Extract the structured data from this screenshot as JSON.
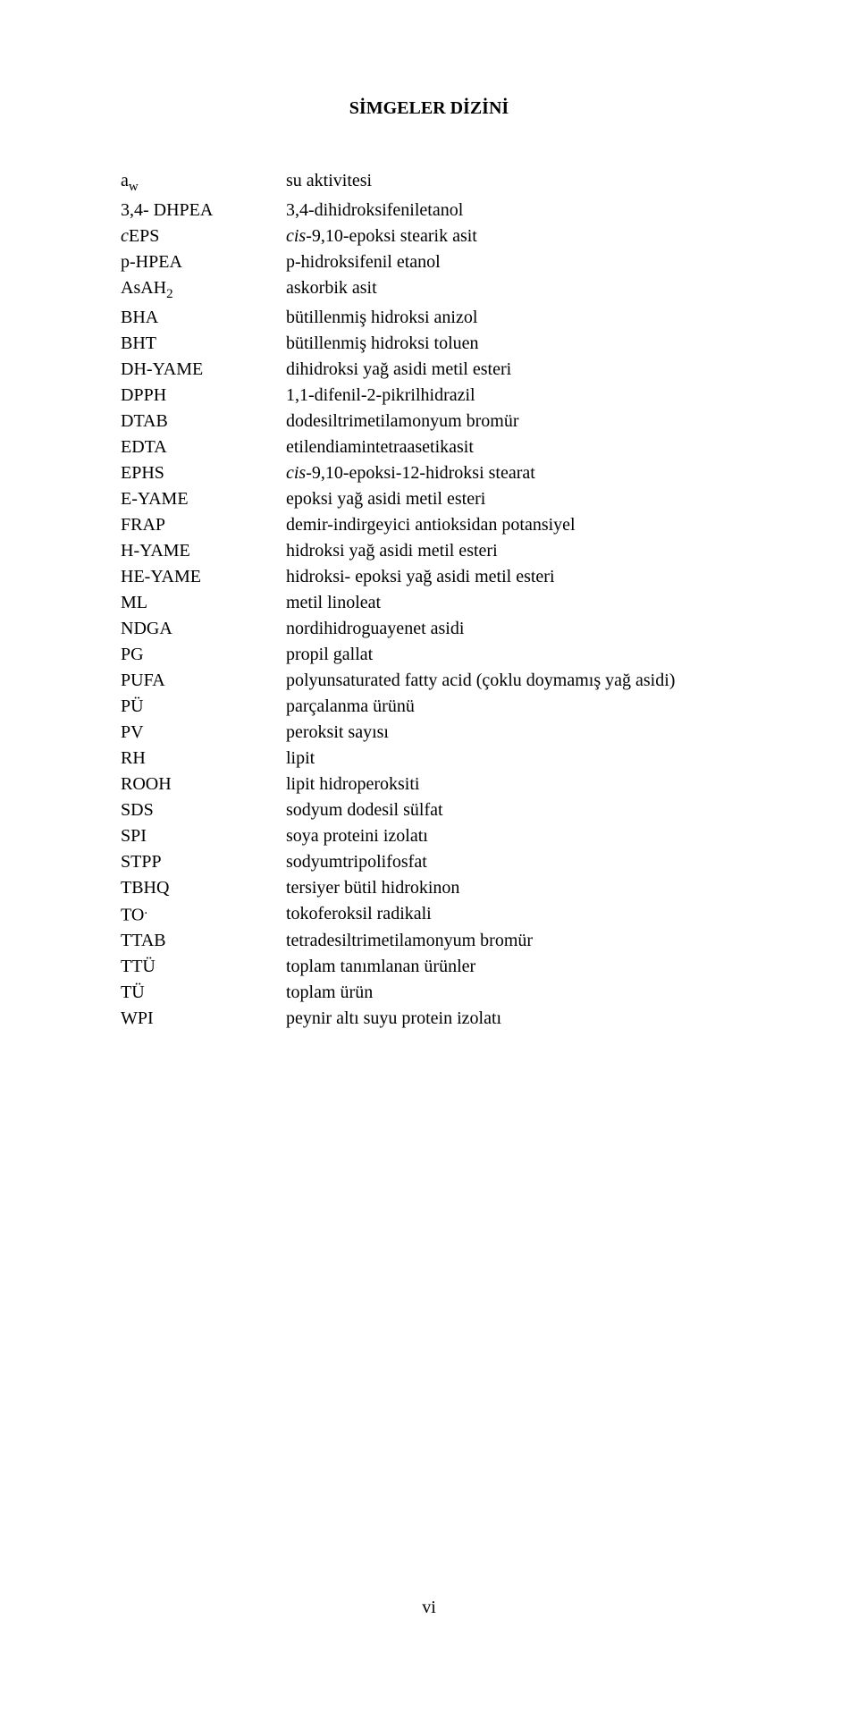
{
  "title": "SİMGELER DİZİNİ",
  "page_number": "vi",
  "colors": {
    "text": "#000000",
    "background": "#ffffff"
  },
  "typography": {
    "family": "Times New Roman",
    "body_fontsize_pt": 15,
    "title_fontsize_pt": 15
  },
  "entries": [
    {
      "abbr_pre": "a",
      "abbr_sub": "w",
      "desc": "su aktivitesi"
    },
    {
      "abbr": "3,4- DHPEA",
      "desc": "3,4-dihidroksifeniletanol"
    },
    {
      "abbr_italic_pre": "c",
      "abbr_post": "EPS",
      "desc_italic_pre": "cis",
      "desc_post": "-9,10-epoksi stearik asit"
    },
    {
      "abbr": "p-HPEA",
      "desc": "p-hidroksifenil etanol"
    },
    {
      "abbr_pre": "AsAH",
      "abbr_sub": "2",
      "desc": "askorbik asit"
    },
    {
      "abbr": "BHA",
      "desc": "bütillenmiş hidroksi anizol"
    },
    {
      "abbr": "BHT",
      "desc": "bütillenmiş hidroksi toluen"
    },
    {
      "abbr": "DH-YAME",
      "desc": "dihidroksi yağ asidi metil esteri"
    },
    {
      "abbr": "DPPH",
      "desc": "1,1-difenil-2-pikrilhidrazil"
    },
    {
      "abbr": "DTAB",
      "desc": "dodesiltrimetilamonyum bromür"
    },
    {
      "abbr": "EDTA",
      "desc": "etilendiamintetraasetikasit"
    },
    {
      "abbr": "EPHS",
      "desc_italic_pre": "cis",
      "desc_post": "-9,10-epoksi-12-hidroksi stearat"
    },
    {
      "abbr": "E-YAME",
      "desc": "epoksi yağ asidi metil esteri"
    },
    {
      "abbr": "FRAP",
      "desc": "demir-indirgeyici antioksidan potansiyel"
    },
    {
      "abbr": "H-YAME",
      "desc": "hidroksi yağ asidi metil esteri"
    },
    {
      "abbr": "HE-YAME",
      "desc": "hidroksi- epoksi yağ asidi metil esteri"
    },
    {
      "abbr": "ML",
      "desc": "metil linoleat"
    },
    {
      "abbr": "NDGA",
      "desc": "nordihidroguayenet asidi"
    },
    {
      "abbr": "PG",
      "desc": "propil gallat"
    },
    {
      "abbr": "PUFA",
      "desc": "polyunsaturated fatty acid (çoklu doymamış yağ asidi)"
    },
    {
      "abbr": "PÜ",
      "desc": "parçalanma ürünü"
    },
    {
      "abbr": "PV",
      "desc": "peroksit sayısı"
    },
    {
      "abbr": "RH",
      "desc": "lipit"
    },
    {
      "abbr": "ROOH",
      "desc": "lipit hidroperoksiti"
    },
    {
      "abbr": "SDS",
      "desc": "sodyum dodesil sülfat"
    },
    {
      "abbr": "SPI",
      "desc": "soya proteini izolatı"
    },
    {
      "abbr": "STPP",
      "desc": "sodyumtripolifosfat"
    },
    {
      "abbr": "TBHQ",
      "desc": "tersiyer bütil hidrokinon"
    },
    {
      "abbr_pre": "TO",
      "abbr_sup": ".",
      "desc": "tokoferoksil radikali"
    },
    {
      "abbr": "TTAB",
      "desc": "tetradesiltrimetilamonyum bromür"
    },
    {
      "abbr": "TTÜ",
      "desc": "toplam tanımlanan ürünler"
    },
    {
      "abbr": "TÜ",
      "desc": "toplam ürün"
    },
    {
      "abbr": "WPI",
      "desc": "peynir altı suyu protein izolatı"
    }
  ]
}
